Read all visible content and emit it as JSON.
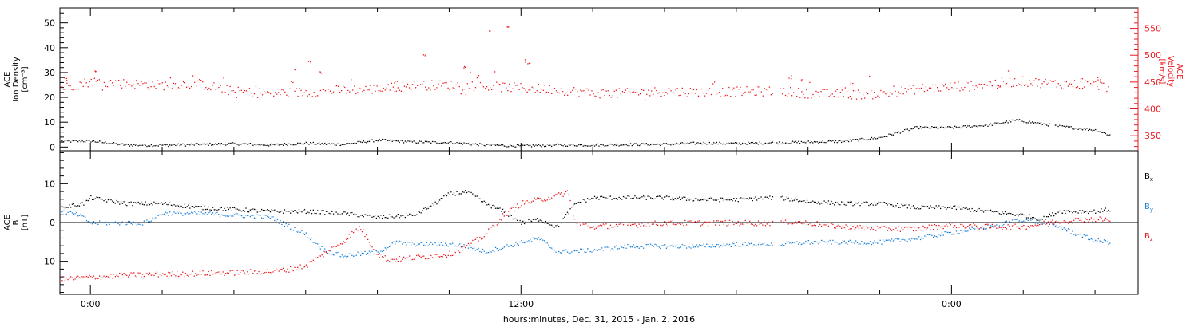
{
  "colors": {
    "black": "#000000",
    "red": "#e8191e",
    "blue": "#1a7fd8"
  },
  "x_title": "hours:minutes, Dec. 31, 2015 - Jan.  2, 2016",
  "chart_data": [
    {
      "type": "scatter",
      "name": "ACE plasma",
      "xlim": [
        -0.85,
        29.2
      ],
      "x_ticks": [
        0,
        12,
        24
      ],
      "x_tick_labels": [
        "0:00",
        "12:00",
        "0:00"
      ],
      "left_axis": {
        "label_lines": [
          "ACE",
          "Ion Density",
          "[cm⁻³]"
        ],
        "ylim": [
          -1.5,
          56
        ],
        "ticks": [
          0,
          10,
          20,
          30,
          40,
          50
        ]
      },
      "right_axis": {
        "label_lines": [
          "ACE",
          "Velocity",
          "[km/s]"
        ],
        "ylim": [
          322,
          588
        ],
        "ticks": [
          350,
          400,
          450,
          500,
          550
        ],
        "color": "#e8191e"
      },
      "series": [
        {
          "axis": "left",
          "color": "#000000",
          "step": 0.04,
          "pts": [
            [
              -0.8,
              2.5
            ],
            [
              0,
              2.6
            ],
            [
              1,
              1.0
            ],
            [
              2,
              0.9
            ],
            [
              4,
              1.5
            ],
            [
              5,
              1.0
            ],
            [
              6,
              1.7
            ],
            [
              7,
              1.2
            ],
            [
              8,
              3.0
            ],
            [
              9,
              2.2
            ],
            [
              10,
              2.0
            ],
            [
              11,
              1.0
            ],
            [
              12,
              0.6
            ],
            [
              13,
              1.0
            ],
            [
              14,
              1.0
            ],
            [
              15,
              1.2
            ],
            [
              16,
              1.3
            ],
            [
              17,
              1.8
            ],
            [
              18,
              1.6
            ],
            [
              18.9,
              1.9
            ],
            [
              19.1,
              1.9
            ],
            [
              20,
              2.2
            ],
            [
              21,
              2.5
            ],
            [
              22,
              4.0
            ],
            [
              23,
              8.0
            ],
            [
              24,
              8.0
            ],
            [
              25,
              9.0
            ],
            [
              25.8,
              11.0
            ],
            [
              27,
              8.5
            ],
            [
              28,
              7.0
            ],
            [
              28.4,
              5.0
            ]
          ],
          "gaps": [
            [
              19.02,
              19.1
            ],
            [
              26.75,
              26.85
            ]
          ],
          "noise": 0.5
        },
        {
          "axis": "right",
          "color": "#e8191e",
          "step": 0.045,
          "pts": [
            [
              -0.8,
              440
            ],
            [
              0,
              452
            ],
            [
              1,
              448
            ],
            [
              2,
              445
            ],
            [
              3,
              448
            ],
            [
              4,
              433
            ],
            [
              5,
              430
            ],
            [
              6,
              432
            ],
            [
              7,
              436
            ],
            [
              8,
              438
            ],
            [
              9,
              445
            ],
            [
              10,
              445
            ],
            [
              11,
              443
            ],
            [
              12,
              440
            ],
            [
              13,
              437
            ],
            [
              14,
              430
            ],
            [
              15,
              430
            ],
            [
              16,
              434
            ],
            [
              17,
              432
            ],
            [
              18,
              433
            ],
            [
              18.9,
              434
            ],
            [
              19.2,
              434
            ],
            [
              20,
              430
            ],
            [
              21,
              428
            ],
            [
              22,
              428
            ],
            [
              23,
              438
            ],
            [
              24,
              442
            ],
            [
              25,
              448
            ],
            [
              26,
              452
            ],
            [
              27,
              447
            ],
            [
              28,
              446
            ],
            [
              28.4,
              440
            ]
          ],
          "gaps": [
            [
              19.02,
              19.2
            ]
          ],
          "noise": 9
        },
        {
          "axis": "right",
          "color": "#e8191e",
          "type": "spikes",
          "pts": [
            [
              -0.7,
              456
            ],
            [
              0.1,
              470
            ],
            [
              5.7,
              476
            ],
            [
              6.1,
              490
            ],
            [
              6.4,
              470
            ],
            [
              8.5,
              452
            ],
            [
              9.3,
              503
            ],
            [
              10.4,
              478
            ],
            [
              11.1,
              548
            ],
            [
              11.6,
              552
            ],
            [
              12.1,
              490
            ],
            [
              12.2,
              485
            ],
            [
              19.5,
              460
            ],
            [
              19.8,
              455
            ],
            [
              21.2,
              448
            ],
            [
              25.3,
              442
            ],
            [
              27.6,
              455
            ],
            [
              28.1,
              458
            ]
          ]
        }
      ]
    },
    {
      "type": "scatter",
      "name": "ACE magnetic field",
      "xlim": [
        -0.85,
        29.2
      ],
      "x_ticks": [
        0,
        12,
        24
      ],
      "x_tick_labels": [
        "0:00",
        "12:00",
        "0:00"
      ],
      "left_axis": {
        "label_lines": [
          "ACE",
          "B",
          "[nT]"
        ],
        "ylim": [
          -18.5,
          18.5
        ],
        "ticks": [
          -10,
          0,
          10
        ]
      },
      "zero_line": true,
      "legend": [
        {
          "label": "B",
          "sub": "x",
          "color": "#000000"
        },
        {
          "label": "B",
          "sub": "y",
          "color": "#1a7fd8"
        },
        {
          "label": "B",
          "sub": "z",
          "color": "#e8191e"
        }
      ],
      "series": [
        {
          "name": "Bx",
          "axis": "left",
          "color": "#000000",
          "step": 0.04,
          "pts": [
            [
              -0.8,
              4.0
            ],
            [
              -0.2,
              5.0
            ],
            [
              0,
              6.5
            ],
            [
              1,
              5.0
            ],
            [
              2,
              5.0
            ],
            [
              3,
              4.0
            ],
            [
              4,
              3.5
            ],
            [
              5,
              3.0
            ],
            [
              6,
              3.0
            ],
            [
              7,
              2.5
            ],
            [
              8,
              1.5
            ],
            [
              9,
              2.0
            ],
            [
              9.5,
              4.5
            ],
            [
              10,
              7.5
            ],
            [
              10.5,
              8.0
            ],
            [
              11,
              5.0
            ],
            [
              11.5,
              3.0
            ],
            [
              12,
              0.0
            ],
            [
              12.5,
              1.0
            ],
            [
              13,
              -1.0
            ],
            [
              13.5,
              5.0
            ],
            [
              14,
              6.5
            ],
            [
              15,
              6.5
            ],
            [
              16,
              6.5
            ],
            [
              17,
              6.0
            ],
            [
              18,
              6.0
            ],
            [
              18.9,
              6.5
            ],
            [
              19.2,
              6.5
            ],
            [
              20,
              5.5
            ],
            [
              21,
              5.0
            ],
            [
              22,
              5.0
            ],
            [
              23,
              4.0
            ],
            [
              24,
              4.0
            ],
            [
              25,
              3.0
            ],
            [
              26,
              2.0
            ],
            [
              26.5,
              1.0
            ],
            [
              27,
              3.0
            ],
            [
              28,
              3.0
            ],
            [
              28.4,
              3.5
            ]
          ],
          "gaps": [
            [
              19.02,
              19.2
            ]
          ],
          "noise": 0.5
        },
        {
          "name": "By",
          "axis": "left",
          "color": "#1a7fd8",
          "step": 0.04,
          "pts": [
            [
              -0.8,
              3.0
            ],
            [
              -0.3,
              2.0
            ],
            [
              0,
              0.0
            ],
            [
              1,
              0.0
            ],
            [
              1.5,
              0.0
            ],
            [
              2,
              2.5
            ],
            [
              3,
              2.5
            ],
            [
              4,
              2.0
            ],
            [
              5,
              1.5
            ],
            [
              6,
              -3.0
            ],
            [
              6.5,
              -7.0
            ],
            [
              7,
              -8.5
            ],
            [
              7.5,
              -8.0
            ],
            [
              8,
              -7.5
            ],
            [
              8.5,
              -5.0
            ],
            [
              9,
              -5.5
            ],
            [
              9.5,
              -5.5
            ],
            [
              10,
              -5.5
            ],
            [
              10.5,
              -6.0
            ],
            [
              11,
              -7.5
            ],
            [
              12,
              -5.0
            ],
            [
              12.5,
              -4.0
            ],
            [
              13,
              -7.5
            ],
            [
              14,
              -7.0
            ],
            [
              15,
              -6.0
            ],
            [
              16,
              -6.0
            ],
            [
              17,
              -6.0
            ],
            [
              18,
              -5.5
            ],
            [
              18.9,
              -5.5
            ],
            [
              19.2,
              -5.5
            ],
            [
              20,
              -5.0
            ],
            [
              21,
              -5.0
            ],
            [
              22,
              -5.0
            ],
            [
              23,
              -4.0
            ],
            [
              24,
              -2.5
            ],
            [
              25,
              -1.0
            ],
            [
              26,
              1.0
            ],
            [
              26.5,
              0.0
            ],
            [
              27,
              -1.0
            ],
            [
              27.5,
              -3.0
            ],
            [
              28,
              -4.5
            ],
            [
              28.4,
              -5.0
            ]
          ],
          "gaps": [
            [
              19.02,
              19.2
            ]
          ],
          "noise": 0.55
        },
        {
          "name": "Bz",
          "axis": "left",
          "color": "#e8191e",
          "step": 0.04,
          "pts": [
            [
              -0.8,
              -14.5
            ],
            [
              0,
              -14.0
            ],
            [
              1,
              -13.5
            ],
            [
              2,
              -13.2
            ],
            [
              3,
              -13.0
            ],
            [
              4,
              -12.8
            ],
            [
              5,
              -12.5
            ],
            [
              5.5,
              -12.0
            ],
            [
              6,
              -11.0
            ],
            [
              6.5,
              -8.0
            ],
            [
              7,
              -5.0
            ],
            [
              7.5,
              -1.0
            ],
            [
              8,
              -8.0
            ],
            [
              8.3,
              -9.5
            ],
            [
              9,
              -9.0
            ],
            [
              10,
              -8.0
            ],
            [
              10.5,
              -6.0
            ],
            [
              11,
              -3.0
            ],
            [
              11.5,
              2.0
            ],
            [
              12,
              5.0
            ],
            [
              12.5,
              6.0
            ],
            [
              13,
              7.0
            ],
            [
              13.3,
              8.0
            ],
            [
              13.5,
              0.0
            ],
            [
              14,
              -1.0
            ],
            [
              15,
              -0.5
            ],
            [
              16,
              0.0
            ],
            [
              17,
              0.0
            ],
            [
              18,
              0.0
            ],
            [
              18.9,
              0.0
            ],
            [
              19.2,
              0.5
            ],
            [
              20,
              0.0
            ],
            [
              21,
              -1.0
            ],
            [
              22,
              -1.5
            ],
            [
              23,
              -1.5
            ],
            [
              24,
              -0.5
            ],
            [
              25,
              -1.0
            ],
            [
              26,
              -1.0
            ],
            [
              27,
              0.5
            ],
            [
              28,
              1.0
            ],
            [
              28.4,
              0.8
            ]
          ],
          "gaps": [
            [
              19.02,
              19.2
            ]
          ],
          "noise": 0.7
        }
      ]
    }
  ]
}
